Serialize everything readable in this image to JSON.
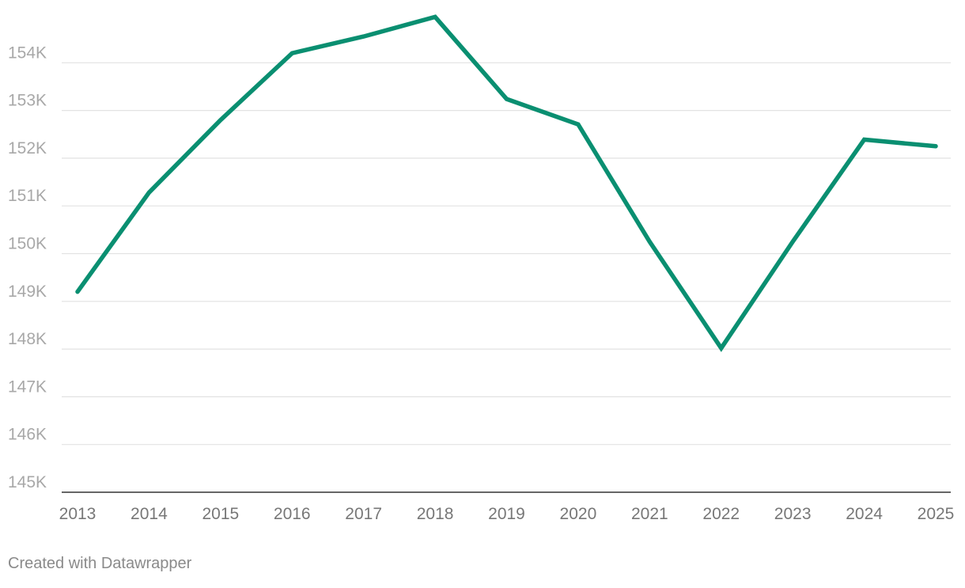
{
  "footer": {
    "credit": "Created with Datawrapper"
  },
  "colors": {
    "line": "#0a8f71",
    "grid": "#e2e2e2",
    "axis": "#333333",
    "y_tick_text": "#a8a8a8",
    "x_tick_text": "#777777"
  },
  "chart_data": {
    "type": "line",
    "x": [
      2013,
      2014,
      2015,
      2016,
      2017,
      2018,
      2019,
      2020,
      2021,
      2022,
      2023,
      2024,
      2025
    ],
    "x_tick_labels": [
      "2013",
      "2014",
      "2015",
      "2016",
      "2017",
      "2018",
      "2019",
      "2020",
      "2021",
      "2022",
      "2023",
      "2024",
      "2025"
    ],
    "series": [
      {
        "values": [
          149200,
          151280,
          152800,
          154200,
          154550,
          154960,
          153240,
          152710,
          150250,
          148020,
          150250,
          152390,
          152250
        ]
      }
    ],
    "y_ticks": [
      145000,
      146000,
      147000,
      148000,
      149000,
      150000,
      151000,
      152000,
      153000,
      154000
    ],
    "y_tick_labels": [
      "145K",
      "146K",
      "147K",
      "148K",
      "149K",
      "150K",
      "151K",
      "152K",
      "153K",
      "154K"
    ],
    "ylim": [
      145000,
      155000
    ],
    "xlim": [
      2013,
      2025
    ],
    "grid": true,
    "legend": "none",
    "title": "",
    "xlabel": "",
    "ylabel": ""
  }
}
